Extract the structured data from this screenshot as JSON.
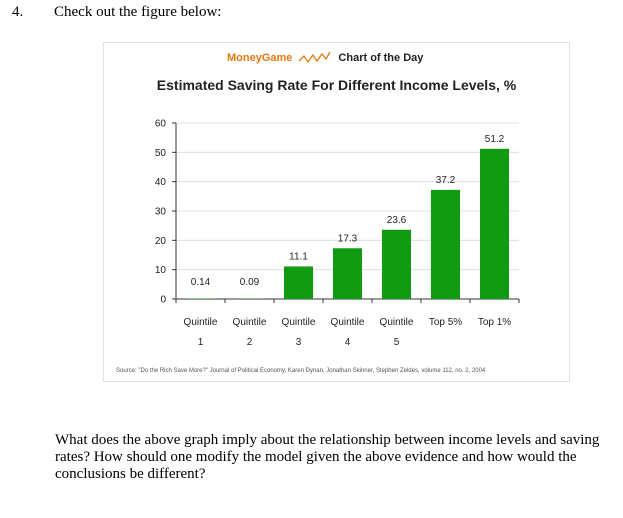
{
  "question_number": "4.",
  "intro": "Check out the figure below:",
  "figure": {
    "brand": "MoneyGame",
    "header": "Chart of the Day",
    "icon": "sparkline-icon",
    "colors": {
      "brand": "#e07a10",
      "bar": "#129a12"
    },
    "source": "Source: \"Do the Rich Save More?\" Journal of Political Economy, Karen Dynan, Jonathan Skinner, Stephen Zeldes, volume 112, no. 2, 2004"
  },
  "chart_data": {
    "type": "bar",
    "title": "Estimated Saving Rate For Different Income Levels, %",
    "categories": [
      [
        "Quintile",
        "1"
      ],
      [
        "Quintile",
        "2"
      ],
      [
        "Quintile",
        "3"
      ],
      [
        "Quintile",
        "4"
      ],
      [
        "Quintile",
        "5"
      ],
      [
        "Top 5%"
      ],
      [
        "Top 1%"
      ]
    ],
    "values": [
      0.14,
      0.09,
      11.1,
      17.3,
      23.6,
      37.2,
      51.2
    ],
    "value_labels": [
      "0.14",
      "0.09",
      "11.1",
      "17.3",
      "23.6",
      "37.2",
      "51.2"
    ],
    "ylim": [
      0,
      60
    ],
    "yticks": [
      0,
      10,
      20,
      30,
      40,
      50,
      60
    ],
    "grid": true,
    "legend": "none"
  },
  "question": "What does the above graph imply about the relationship between income levels and saving rates? How should one modify the model given the above evidence and how would the conclusions be different?"
}
